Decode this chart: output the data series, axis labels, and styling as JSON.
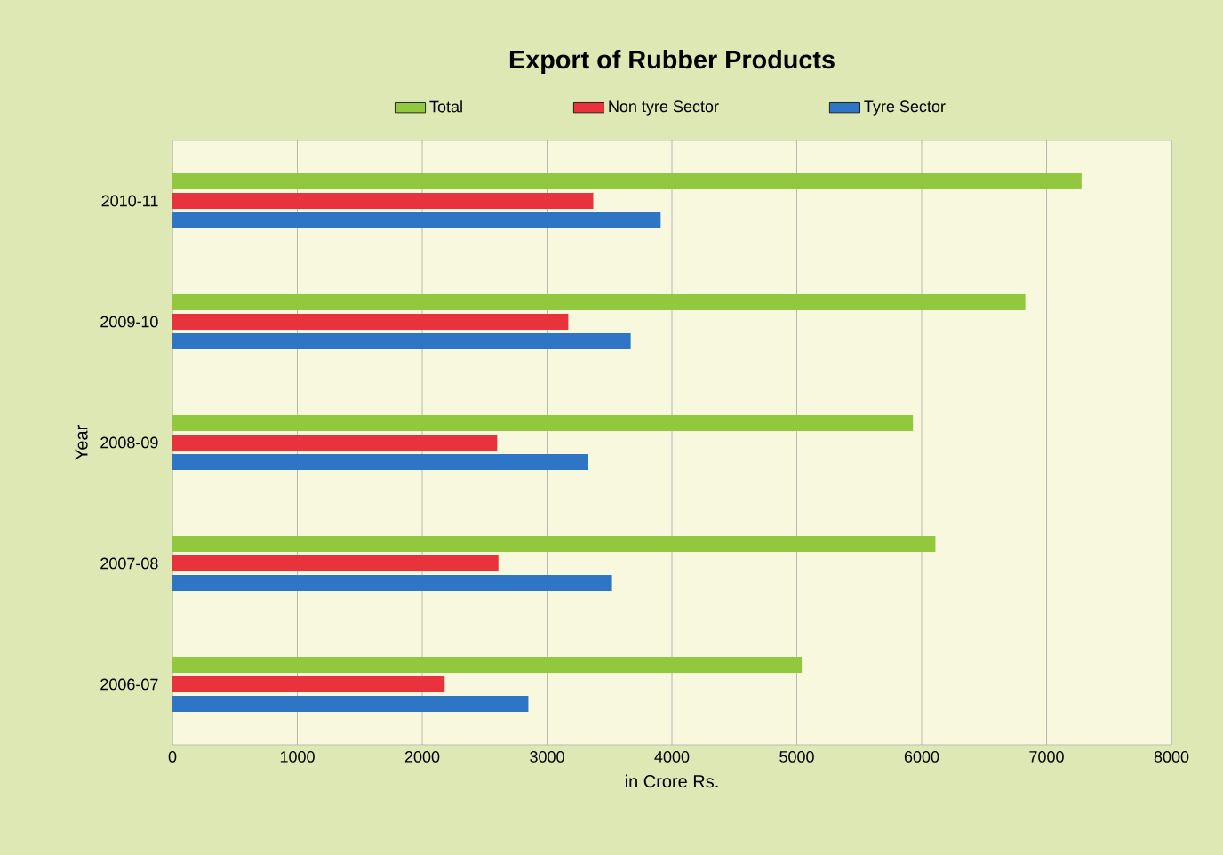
{
  "chart_data": {
    "type": "bar",
    "orientation": "horizontal",
    "title": "Export of Rubber Products",
    "xlabel": "in Crore Rs.",
    "ylabel": "Year",
    "categories": [
      "2010-11",
      "2009-10",
      "2008-09",
      "2007-08",
      "2006-07"
    ],
    "series": [
      {
        "name": "Total",
        "color": "#92c83e",
        "values": [
          7280,
          6830,
          5930,
          6110,
          5040
        ]
      },
      {
        "name": "Non tyre Sector",
        "color": "#e8333c",
        "values": [
          3370,
          3170,
          2600,
          2610,
          2180
        ]
      },
      {
        "name": "Tyre Sector",
        "color": "#2e75c6",
        "values": [
          3910,
          3670,
          3330,
          3520,
          2850
        ]
      }
    ],
    "xlim": [
      0,
      8000
    ],
    "xticks": [
      0,
      1000,
      2000,
      3000,
      4000,
      5000,
      6000,
      7000,
      8000
    ],
    "grid": "x",
    "legend": "top"
  }
}
